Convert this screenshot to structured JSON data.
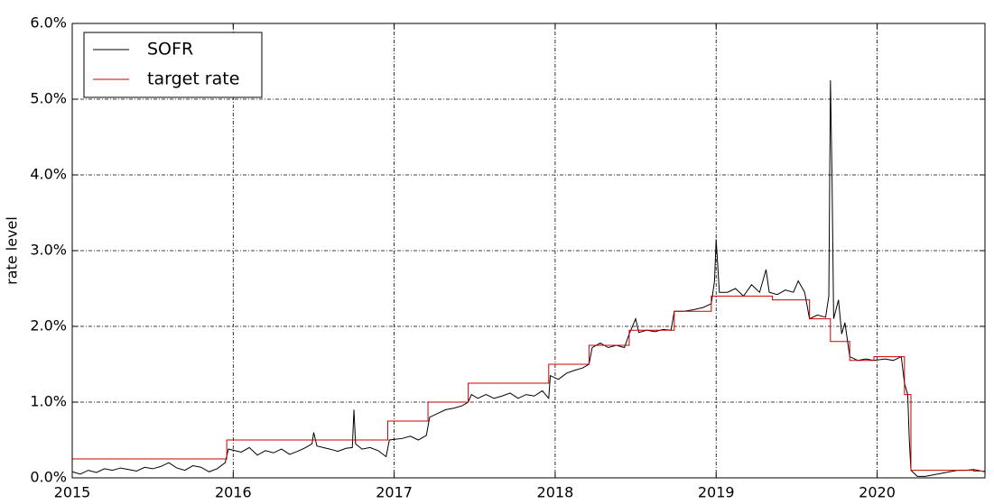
{
  "chart_data": {
    "type": "line",
    "y_label": "rate level",
    "xlim": [
      2015,
      2020.67
    ],
    "xticks": [
      2015,
      2016,
      2017,
      2018,
      2019,
      2020
    ],
    "ylim": [
      0,
      6
    ],
    "yticks": [
      {
        "value": 0,
        "label": "0.0%"
      },
      {
        "value": 1,
        "label": "1.0%"
      },
      {
        "value": 2,
        "label": "2.0%"
      },
      {
        "value": 3,
        "label": "3.0%"
      },
      {
        "value": 4,
        "label": "4.0%"
      },
      {
        "value": 5,
        "label": "5.0%"
      },
      {
        "value": 6,
        "label": "6.0%"
      }
    ],
    "grid": true,
    "legend": "upper left",
    "series": [
      {
        "name": "SOFR",
        "color": "#000000",
        "x": [
          2015.0,
          2015.05,
          2015.1,
          2015.15,
          2015.2,
          2015.25,
          2015.3,
          2015.35,
          2015.4,
          2015.45,
          2015.5,
          2015.55,
          2015.6,
          2015.65,
          2015.7,
          2015.75,
          2015.8,
          2015.85,
          2015.9,
          2015.95,
          2015.97,
          2016.05,
          2016.1,
          2016.15,
          2016.2,
          2016.25,
          2016.3,
          2016.35,
          2016.4,
          2016.45,
          2016.49,
          2016.5,
          2016.52,
          2016.6,
          2016.65,
          2016.7,
          2016.74,
          2016.75,
          2016.76,
          2016.8,
          2016.85,
          2016.9,
          2016.95,
          2016.97,
          2017.05,
          2017.1,
          2017.15,
          2017.2,
          2017.22,
          2017.27,
          2017.32,
          2017.37,
          2017.42,
          2017.46,
          2017.48,
          2017.52,
          2017.57,
          2017.62,
          2017.67,
          2017.72,
          2017.77,
          2017.82,
          2017.87,
          2017.92,
          2017.96,
          2017.97,
          2018.02,
          2018.07,
          2018.12,
          2018.17,
          2018.21,
          2018.23,
          2018.28,
          2018.33,
          2018.38,
          2018.43,
          2018.46,
          2018.5,
          2018.52,
          2018.57,
          2018.62,
          2018.67,
          2018.72,
          2018.74,
          2018.8,
          2018.86,
          2018.92,
          2018.97,
          2018.99,
          2019.0,
          2019.02,
          2019.07,
          2019.12,
          2019.17,
          2019.22,
          2019.27,
          2019.31,
          2019.33,
          2019.38,
          2019.43,
          2019.48,
          2019.51,
          2019.55,
          2019.58,
          2019.63,
          2019.68,
          2019.7,
          2019.71,
          2019.72,
          2019.73,
          2019.76,
          2019.78,
          2019.8,
          2019.83,
          2019.88,
          2019.93,
          2019.98,
          2020.05,
          2020.1,
          2020.15,
          2020.17,
          2020.19,
          2020.2,
          2020.21,
          2020.25,
          2020.3,
          2020.35,
          2020.4,
          2020.45,
          2020.5,
          2020.55,
          2020.6,
          2020.67
        ],
        "values": [
          0.08,
          0.05,
          0.1,
          0.07,
          0.12,
          0.1,
          0.13,
          0.11,
          0.09,
          0.14,
          0.12,
          0.15,
          0.2,
          0.13,
          0.1,
          0.16,
          0.14,
          0.08,
          0.12,
          0.2,
          0.38,
          0.34,
          0.4,
          0.3,
          0.36,
          0.33,
          0.38,
          0.31,
          0.35,
          0.4,
          0.45,
          0.6,
          0.42,
          0.38,
          0.35,
          0.39,
          0.4,
          0.9,
          0.45,
          0.38,
          0.4,
          0.36,
          0.28,
          0.5,
          0.52,
          0.55,
          0.5,
          0.56,
          0.8,
          0.85,
          0.9,
          0.92,
          0.95,
          1.0,
          1.1,
          1.05,
          1.1,
          1.05,
          1.08,
          1.12,
          1.05,
          1.1,
          1.08,
          1.15,
          1.05,
          1.35,
          1.3,
          1.38,
          1.42,
          1.45,
          1.5,
          1.72,
          1.78,
          1.72,
          1.75,
          1.72,
          1.9,
          2.1,
          1.92,
          1.95,
          1.93,
          1.96,
          1.95,
          2.2,
          2.2,
          2.22,
          2.25,
          2.3,
          2.6,
          3.15,
          2.45,
          2.45,
          2.5,
          2.4,
          2.55,
          2.45,
          2.75,
          2.45,
          2.42,
          2.48,
          2.45,
          2.6,
          2.45,
          2.1,
          2.15,
          2.12,
          2.4,
          5.25,
          3.95,
          2.1,
          2.35,
          1.9,
          2.05,
          1.6,
          1.55,
          1.57,
          1.55,
          1.57,
          1.55,
          1.6,
          1.25,
          1.1,
          0.5,
          0.1,
          0.02,
          0.02,
          0.04,
          0.06,
          0.08,
          0.1,
          0.1,
          0.11,
          0.08
        ]
      },
      {
        "name": "target rate",
        "color": "#cc0000",
        "x": [
          2015,
          2015.96,
          2015.96,
          2016.96,
          2016.96,
          2017.21,
          2017.21,
          2017.46,
          2017.46,
          2017.96,
          2017.96,
          2018.21,
          2018.21,
          2018.46,
          2018.46,
          2018.74,
          2018.74,
          2018.97,
          2018.97,
          2019.35,
          2019.35,
          2019.58,
          2019.58,
          2019.71,
          2019.71,
          2019.83,
          2019.83,
          2019.98,
          2019.98,
          2020.17,
          2020.17,
          2020.21,
          2020.21,
          2020.6,
          2020.6,
          2020.67
        ],
        "values": [
          0.25,
          0.25,
          0.5,
          0.5,
          0.75,
          0.75,
          1.0,
          1.0,
          1.25,
          1.25,
          1.5,
          1.5,
          1.75,
          1.75,
          1.95,
          1.95,
          2.2,
          2.2,
          2.4,
          2.4,
          2.35,
          2.35,
          2.1,
          2.1,
          1.8,
          1.8,
          1.55,
          1.55,
          1.6,
          1.6,
          1.1,
          1.1,
          0.1,
          0.1,
          0.09,
          0.09
        ]
      }
    ]
  }
}
